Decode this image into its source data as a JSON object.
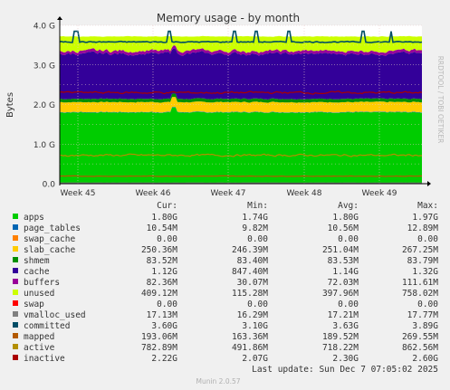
{
  "title": "Memory usage - by month",
  "ylabel": "Bytes",
  "watermark": "RRDTOOL / TOBI OETIKER",
  "footer": "Munin 2.0.57",
  "last_update": "Last update: Sun Dec  7 07:05:02 2025",
  "columns": [
    "Cur:",
    "Min:",
    "Avg:",
    "Max:"
  ],
  "colors": {
    "background": "#f0f0f0",
    "canvas": "#ffffff",
    "grid": "#e6c8c8",
    "axis": "#000000"
  },
  "chart_data": {
    "type": "area",
    "x_ticks": [
      "Week 45",
      "Week 46",
      "Week 47",
      "Week 48",
      "Week 49"
    ],
    "y_ticks": [
      "0.0",
      "1.0 G",
      "2.0 G",
      "3.0 G",
      "4.0 G"
    ],
    "ylim_gb": [
      0,
      4
    ],
    "grid": true,
    "stack_order": [
      "apps",
      "page_tables",
      "swap_cache",
      "slab_cache",
      "shmem",
      "cache",
      "buffers",
      "unused",
      "swap"
    ],
    "series": [
      {
        "name": "apps",
        "color": "#00cc00",
        "draw": "area",
        "cur": "1.80G",
        "min": "1.74G",
        "avg": "1.80G",
        "max": "1.97G",
        "typical_gb": 1.8
      },
      {
        "name": "page_tables",
        "color": "#0066b3",
        "draw": "stack",
        "cur": "10.54M",
        "min": "9.82M",
        "avg": "10.56M",
        "max": "12.89M",
        "typical_gb": 0.0106
      },
      {
        "name": "swap_cache",
        "color": "#ff8000",
        "draw": "stack",
        "cur": "0.00",
        "min": "0.00",
        "avg": "0.00",
        "max": "0.00",
        "typical_gb": 0
      },
      {
        "name": "slab_cache",
        "color": "#ffcc00",
        "draw": "stack",
        "cur": "250.36M",
        "min": "246.39M",
        "avg": "251.04M",
        "max": "267.25M",
        "typical_gb": 0.251
      },
      {
        "name": "shmem",
        "color": "#008f00",
        "draw": "stack",
        "cur": "83.52M",
        "min": "83.40M",
        "avg": "83.53M",
        "max": "83.79M",
        "typical_gb": 0.0835
      },
      {
        "name": "cache",
        "color": "#330099",
        "draw": "stack",
        "cur": "1.12G",
        "min": "847.40M",
        "avg": "1.14G",
        "max": "1.32G",
        "typical_gb": 1.14
      },
      {
        "name": "buffers",
        "color": "#990099",
        "draw": "stack",
        "cur": "82.36M",
        "min": "30.07M",
        "avg": "72.03M",
        "max": "111.61M",
        "typical_gb": 0.072
      },
      {
        "name": "unused",
        "color": "#ccff00",
        "draw": "stack",
        "cur": "409.12M",
        "min": "115.28M",
        "avg": "397.96M",
        "max": "758.02M",
        "typical_gb": 0.398
      },
      {
        "name": "swap",
        "color": "#ff0000",
        "draw": "stack",
        "cur": "0.00",
        "min": "0.00",
        "avg": "0.00",
        "max": "0.00",
        "typical_gb": 0
      },
      {
        "name": "vmalloc_used",
        "color": "#808080",
        "draw": "line",
        "cur": "17.13M",
        "min": "16.29M",
        "avg": "17.21M",
        "max": "17.77M",
        "typical_gb": 0.0172
      },
      {
        "name": "committed",
        "color": "#004d66",
        "draw": "line",
        "cur": "3.60G",
        "min": "3.10G",
        "avg": "3.63G",
        "max": "3.89G",
        "typical_gb": 3.63
      },
      {
        "name": "mapped",
        "color": "#b35a00",
        "draw": "line",
        "cur": "193.06M",
        "min": "163.36M",
        "avg": "189.52M",
        "max": "269.55M",
        "typical_gb": 0.19
      },
      {
        "name": "active",
        "color": "#b38f00",
        "draw": "line",
        "cur": "782.89M",
        "min": "491.86M",
        "avg": "718.22M",
        "max": "862.56M",
        "typical_gb": 0.718
      },
      {
        "name": "inactive",
        "color": "#aa0000",
        "draw": "line",
        "cur": "2.22G",
        "min": "2.07G",
        "avg": "2.30G",
        "max": "2.60G",
        "typical_gb": 2.3
      }
    ]
  }
}
